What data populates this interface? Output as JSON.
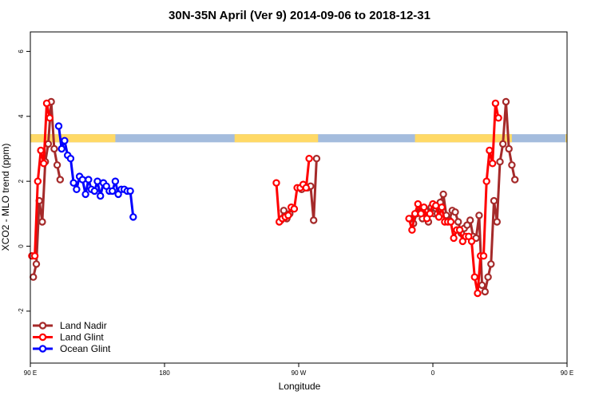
{
  "chart_data": {
    "type": "line",
    "title": "30N-35N April (Ver 9)   2014-09-06 to 2018-12-31",
    "xlabel": "Longitude",
    "ylabel": "XCO2 - MLO trend (ppm)",
    "xlim": [
      90,
      450
    ],
    "ylim": [
      -3.6,
      6.6
    ],
    "x_ticks": [
      {
        "value": 90,
        "label": "90 E"
      },
      {
        "value": 180,
        "label": "180"
      },
      {
        "value": 270,
        "label": "90 W"
      },
      {
        "value": 360,
        "label": "0"
      },
      {
        "value": 450,
        "label": "90 E"
      },
      {
        "value": 540,
        "label": "180"
      }
    ],
    "y_ticks": [
      {
        "value": -2,
        "label": "-2"
      },
      {
        "value": 0,
        "label": "0"
      },
      {
        "value": 2,
        "label": "2"
      },
      {
        "value": 4,
        "label": "4"
      },
      {
        "value": 6,
        "label": "6"
      }
    ],
    "grid": false,
    "legend_position": "bottom-left",
    "land_ocean_band": {
      "ylim": [
        3.2,
        3.45
      ],
      "land_color": "#FFD966",
      "ocean_color": "#A4BCDD",
      "land_intervals": [
        [
          90,
          147
        ],
        [
          227,
          283
        ],
        [
          348,
          413
        ],
        [
          449,
          505
        ]
      ]
    },
    "series": [
      {
        "name": "Land Nadir",
        "color": "#A52A2A",
        "x": [
          92,
          94,
          96,
          98,
          100,
          102,
          104,
          106,
          108,
          110,
          "",
          258,
          260,
          262,
          264,
          266,
          "",
          272,
          274,
          276,
          278,
          280,
          282,
          "",
          345,
          347,
          349,
          351,
          353,
          355,
          357,
          359,
          361,
          363,
          365,
          367,
          369,
          371,
          373,
          375,
          377,
          379,
          381,
          383,
          385,
          387,
          389,
          391,
          393,
          395,
          397,
          399,
          401,
          403,
          405,
          407,
          409,
          411,
          413,
          415,
          417,
          419,
          421,
          423,
          425,
          427,
          429,
          431,
          433,
          435,
          437,
          439,
          441,
          443,
          445
        ],
        "y": [
          -0.95,
          -0.55,
          1.4,
          0.75,
          2.6,
          3.15,
          4.45,
          3.0,
          2.5,
          2.05,
          "",
          0.8,
          1.1,
          0.85,
          1.0,
          1.15,
          "",
          1.75,
          1.85,
          1.8,
          1.85,
          0.8,
          2.7,
          "",
          0.85,
          0.7,
          1.0,
          1.2,
          0.85,
          1.1,
          0.75,
          1.2,
          1.0,
          1.0,
          1.35,
          1.6,
          0.95,
          0.8,
          1.1,
          1.05,
          0.75,
          0.4,
          0.55,
          0.65,
          0.8,
          0.3,
          0.25,
          0.95,
          -1.2,
          -1.4,
          -0.95,
          -0.55,
          1.4,
          0.75,
          2.6,
          3.15,
          4.45,
          3.0,
          2.5,
          2.05,
          "",
          "",
          "",
          "",
          "",
          "",
          "",
          "",
          "",
          "",
          "",
          "",
          "",
          "",
          ""
        ]
      },
      {
        "name": "Land Glint",
        "color": "#FF0000",
        "x": [
          91,
          93,
          95,
          97,
          99,
          101,
          103,
          105,
          107,
          109,
          "",
          255,
          257,
          259,
          261,
          263,
          265,
          267,
          269,
          271,
          273,
          275,
          277,
          "",
          344,
          346,
          348,
          350,
          352,
          354,
          356,
          358,
          360,
          362,
          364,
          366,
          368,
          370,
          372,
          374,
          376,
          378,
          380,
          382,
          384,
          386,
          388,
          390,
          392,
          394,
          396,
          398,
          400,
          402,
          404,
          406,
          408,
          "",
          410
        ],
        "y": [
          -0.3,
          -0.3,
          2.0,
          2.95,
          2.55,
          4.4,
          3.95,
          "",
          "",
          "",
          "",
          1.95,
          0.75,
          0.85,
          0.9,
          0.95,
          1.2,
          1.15,
          1.8,
          1.8,
          1.9,
          1.8,
          2.7,
          "",
          0.85,
          0.5,
          1.0,
          1.3,
          1.0,
          1.2,
          0.85,
          1.0,
          1.3,
          1.25,
          0.9,
          1.2,
          0.75,
          0.75,
          0.75,
          0.25,
          0.5,
          0.5,
          0.15,
          0.3,
          0.3,
          0.15,
          -0.95,
          -1.45,
          -0.3,
          -0.3,
          2.0,
          2.95,
          2.55,
          4.4,
          3.95,
          "",
          "",
          "",
          ""
        ]
      },
      {
        "name": "Ocean Glint",
        "color": "#0000FF",
        "x": [
          109,
          111,
          113,
          115,
          117,
          119,
          121,
          123,
          125,
          127,
          129,
          131,
          133,
          135,
          137,
          139,
          141,
          143,
          145,
          147,
          149,
          151,
          153,
          155,
          157,
          159,
          161,
          163,
          165,
          167,
          169,
          171,
          173,
          175,
          177,
          179,
          181,
          183,
          185,
          187,
          189,
          191,
          193,
          195,
          197,
          199,
          201,
          203,
          205,
          207,
          209,
          211,
          213,
          215,
          217,
          219,
          221,
          223,
          225,
          227,
          229,
          231,
          233,
          235,
          237,
          239,
          241,
          243,
          245,
          247,
          249,
          251,
          253
        ],
        "y": [
          3.7,
          3.0,
          3.25,
          2.8,
          2.7,
          1.95,
          1.75,
          2.15,
          2.05,
          1.6,
          2.05,
          1.75,
          1.7,
          2.0,
          1.55,
          1.95,
          1.85,
          1.7,
          1.7,
          2.0,
          1.6,
          1.75,
          1.75,
          1.7,
          1.7,
          0.9,
          "",
          "",
          "",
          "",
          "",
          "",
          "",
          "",
          "",
          "",
          "",
          "",
          "",
          "",
          "",
          "",
          "",
          "",
          "",
          "",
          "",
          "",
          "",
          "",
          "",
          "",
          "",
          "",
          "",
          "",
          "",
          "",
          "",
          "",
          "",
          "",
          "",
          "",
          "",
          "",
          "",
          "",
          "",
          "",
          "",
          "",
          ""
        ]
      }
    ]
  }
}
